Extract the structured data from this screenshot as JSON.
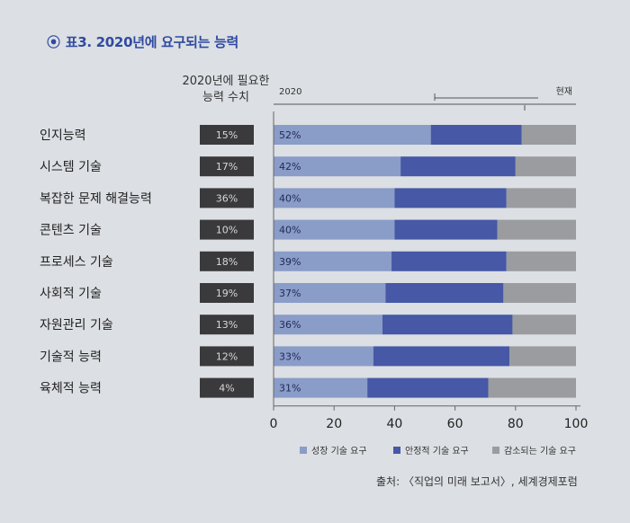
{
  "figure": {
    "bullet": "⦿",
    "title": "표3. 2020년에 요구되는 능력",
    "column_header": [
      "2020년에 필요한",
      "능력 수치"
    ],
    "source": "출처: 〈직업의 미래 보고서〉, 세계경제포럼"
  },
  "chart_data": {
    "type": "bar",
    "orientation": "horizontal",
    "stacked": true,
    "categories": [
      "인지능력",
      "시스템 기술",
      "복잡한 문제 해결능력",
      "콘텐츠 기술",
      "프로세스 기술",
      "사회적 기술",
      "자원관리 기술",
      "기술적 능력",
      "육체적 능력"
    ],
    "needed_2020": [
      "15%",
      "17%",
      "36%",
      "10%",
      "18%",
      "19%",
      "13%",
      "12%",
      "4%"
    ],
    "series": [
      {
        "name": "성장 기술 요구",
        "values": [
          52,
          42,
          40,
          40,
          39,
          37,
          36,
          33,
          31
        ],
        "color": "#8a9cc8"
      },
      {
        "name": "안정적 기술 요구",
        "values": [
          30,
          38,
          37,
          34,
          38,
          39,
          43,
          45,
          40
        ],
        "color": "#4658a6"
      },
      {
        "name": "감소되는 기술 요구",
        "values": [
          18,
          20,
          23,
          26,
          23,
          24,
          21,
          22,
          29
        ],
        "color": "#9a9c9f"
      }
    ],
    "bar_labels": [
      "52%",
      "42%",
      "40%",
      "40%",
      "39%",
      "37%",
      "36%",
      "33%",
      "31%"
    ],
    "xlim": [
      0,
      100
    ],
    "xticks": [
      "0",
      "20",
      "40",
      "60",
      "80",
      "100"
    ],
    "range_labels": {
      "start": "2020",
      "end": "현재"
    },
    "legend_position": "bottom"
  }
}
